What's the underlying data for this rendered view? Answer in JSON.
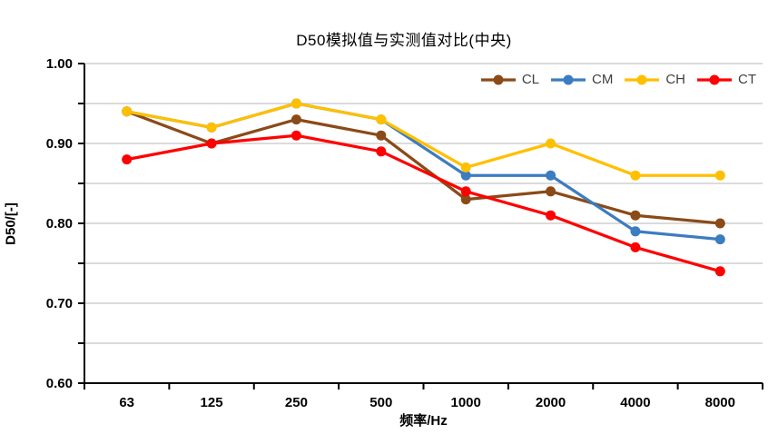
{
  "chart_data": {
    "type": "line",
    "title": "D50模拟值与实测值对比(中央)",
    "xlabel": "频率/Hz",
    "ylabel": "D50/[-]",
    "categories": [
      "63",
      "125",
      "250",
      "500",
      "1000",
      "2000",
      "4000",
      "8000"
    ],
    "series": [
      {
        "name": "CL",
        "color": "#8B4A17",
        "values": [
          0.94,
          0.9,
          0.93,
          0.91,
          0.83,
          0.84,
          0.81,
          0.8
        ]
      },
      {
        "name": "CM",
        "color": "#3C7CC0",
        "values": [
          0.94,
          0.92,
          0.95,
          0.93,
          0.86,
          0.86,
          0.79,
          0.78
        ]
      },
      {
        "name": "CH",
        "color": "#FFC000",
        "values": [
          0.94,
          0.92,
          0.95,
          0.93,
          0.87,
          0.9,
          0.86,
          0.86
        ]
      },
      {
        "name": "CT",
        "color": "#FF0000",
        "values": [
          0.88,
          0.9,
          0.91,
          0.89,
          0.84,
          0.81,
          0.77,
          0.74
        ]
      }
    ],
    "ylim": [
      0.6,
      1.0
    ],
    "y_gridline_step": 0.05,
    "y_tick_labels": [
      "1.00",
      "0.90",
      "0.80",
      "0.70",
      "0.60"
    ],
    "grid": true,
    "legend_position": "top-right",
    "colors": {
      "gridline": "#D6D6D6",
      "axis": "#000000",
      "legend_text": "#404040",
      "title_text": "#000000",
      "background": "#FFFFFF"
    }
  }
}
